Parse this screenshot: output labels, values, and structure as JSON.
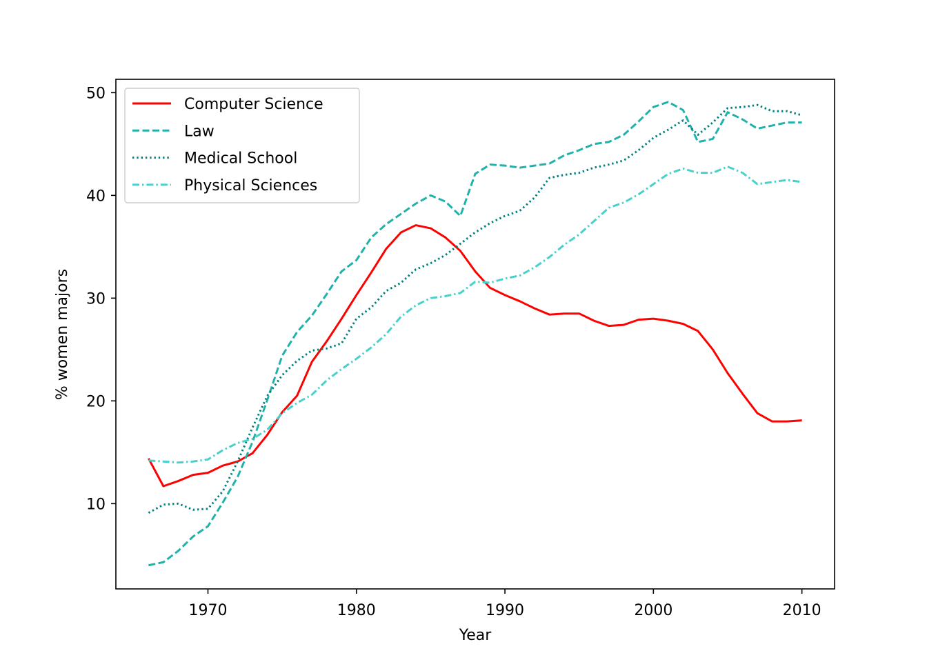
{
  "chart_data": {
    "type": "line",
    "xlabel": "Year",
    "ylabel": "% women majors",
    "xlim": [
      1963.8,
      2012.2
    ],
    "ylim": [
      1.7,
      51.3
    ],
    "xticks": [
      1970,
      1980,
      1990,
      2000,
      2010
    ],
    "yticks": [
      10,
      20,
      30,
      40,
      50
    ],
    "grid": false,
    "legend_position": "top-left",
    "x": [
      1966,
      1967,
      1968,
      1969,
      1970,
      1971,
      1972,
      1973,
      1974,
      1975,
      1976,
      1977,
      1978,
      1979,
      1980,
      1981,
      1982,
      1983,
      1984,
      1985,
      1986,
      1987,
      1988,
      1989,
      1990,
      1991,
      1992,
      1993,
      1994,
      1995,
      1996,
      1997,
      1998,
      1999,
      2000,
      2001,
      2002,
      2003,
      2004,
      2005,
      2006,
      2007,
      2008,
      2009,
      2010
    ],
    "series": [
      {
        "name": "Computer Science",
        "color": "#ff0000",
        "dash": "solid",
        "values": [
          14.4,
          11.7,
          12.2,
          12.8,
          13.0,
          13.7,
          14.1,
          14.9,
          16.7,
          18.9,
          20.5,
          23.8,
          25.8,
          28.0,
          30.3,
          32.5,
          34.8,
          36.4,
          37.1,
          36.8,
          35.9,
          34.6,
          32.6,
          31.0,
          30.3,
          29.7,
          29.0,
          28.4,
          28.5,
          28.5,
          27.8,
          27.3,
          27.4,
          27.9,
          28.0,
          27.8,
          27.5,
          26.8,
          25.0,
          22.7,
          20.7,
          18.8,
          18.0,
          18.0,
          18.1
        ]
      },
      {
        "name": "Law",
        "color": "#20b2aa",
        "dash": "dashed",
        "values": [
          4.0,
          4.3,
          5.4,
          6.8,
          7.8,
          10.1,
          12.6,
          16.0,
          20.1,
          24.4,
          26.7,
          28.3,
          30.4,
          32.6,
          33.7,
          35.9,
          37.2,
          38.2,
          39.2,
          40.0,
          39.4,
          38.0,
          42.1,
          43.0,
          42.9,
          42.7,
          42.9,
          43.1,
          43.9,
          44.4,
          45.0,
          45.2,
          45.9,
          47.2,
          48.6,
          49.1,
          48.3,
          45.2,
          45.5,
          48.1,
          47.4,
          46.5,
          46.8,
          47.1,
          47.1
        ]
      },
      {
        "name": "Medical School",
        "color": "#008080",
        "dash": "dotted",
        "values": [
          9.1,
          9.9,
          10.0,
          9.4,
          9.5,
          11.2,
          14.1,
          17.4,
          20.5,
          22.5,
          23.9,
          24.9,
          25.1,
          25.6,
          28.0,
          29.1,
          30.7,
          31.5,
          32.8,
          33.4,
          34.2,
          35.3,
          36.4,
          37.3,
          38.0,
          38.5,
          39.8,
          41.7,
          42.0,
          42.2,
          42.7,
          43.0,
          43.4,
          44.4,
          45.6,
          46.4,
          47.3,
          45.9,
          47.1,
          48.5,
          48.6,
          48.8,
          48.2,
          48.2,
          47.8
        ]
      },
      {
        "name": "Physical Sciences",
        "color": "#48d1cc",
        "dash": "dashdot",
        "values": [
          14.2,
          14.1,
          14.0,
          14.1,
          14.3,
          15.2,
          15.9,
          16.3,
          17.2,
          18.8,
          19.8,
          20.6,
          22.0,
          23.1,
          24.1,
          25.2,
          26.5,
          28.2,
          29.3,
          30.0,
          30.2,
          30.5,
          31.6,
          31.5,
          31.9,
          32.2,
          33.0,
          34.0,
          35.2,
          36.2,
          37.5,
          38.8,
          39.3,
          40.1,
          41.1,
          42.1,
          42.6,
          42.2,
          42.2,
          42.8,
          42.2,
          41.1,
          41.3,
          41.5,
          41.3
        ]
      }
    ]
  }
}
